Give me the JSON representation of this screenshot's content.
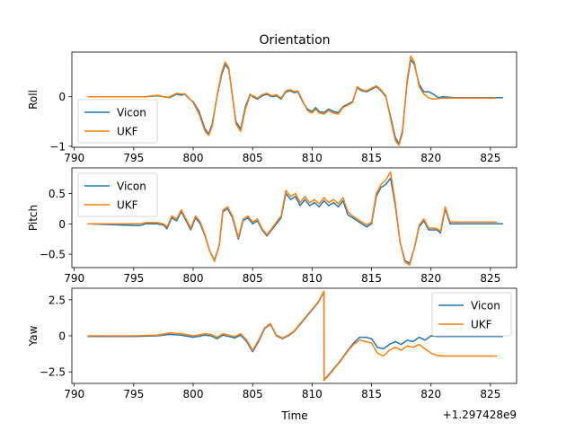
{
  "chart_data": {
    "type": "line",
    "title": "Orientation",
    "xlabel": "Time",
    "x_offset_label": "+1.297428e9",
    "colors": {
      "Vicon": "#1f77b4",
      "UKF": "#ff7f0e"
    },
    "panels": [
      {
        "ylabel": "Roll",
        "xlim": [
          789.8,
          827.2
        ],
        "ylim": [
          -1.02,
          0.9
        ],
        "xticks": [
          790,
          795,
          800,
          805,
          810,
          815,
          820,
          825
        ],
        "yticks": [
          0,
          -1
        ],
        "legend": "lower-left",
        "series": [
          {
            "name": "Vicon",
            "x": [
              791.2,
              796,
              797,
              797.5,
              798,
              798.6,
              799,
              799.3,
              799.7,
              800,
              800.5,
              801,
              801.3,
              801.6,
              802,
              802.4,
              802.7,
              803,
              803.3,
              803.6,
              804,
              804.4,
              804.8,
              805,
              805.4,
              805.8,
              806.2,
              806.6,
              807,
              807.4,
              807.8,
              808.2,
              808.5,
              808.8,
              809.2,
              809.6,
              810,
              810.3,
              810.6,
              811,
              811.4,
              811.8,
              812.2,
              812.6,
              813,
              813.4,
              813.8,
              814.2,
              814.6,
              815,
              815.4,
              815.8,
              816.2,
              816.6,
              817,
              817.3,
              817.6,
              818,
              818.3,
              818.6,
              819,
              819.4,
              819.8,
              820.2,
              820.6,
              821,
              822,
              824,
              826
            ],
            "y": [
              0.0,
              0.0,
              0.02,
              0.0,
              -0.02,
              0.05,
              0.03,
              0.05,
              -0.05,
              -0.1,
              -0.3,
              -0.65,
              -0.75,
              -0.55,
              0.0,
              0.45,
              0.65,
              0.55,
              0.0,
              -0.5,
              -0.65,
              -0.2,
              0.05,
              0.0,
              -0.05,
              0.02,
              0.05,
              0.0,
              0.02,
              -0.05,
              0.1,
              0.12,
              0.08,
              0.1,
              -0.1,
              -0.25,
              -0.3,
              -0.22,
              -0.3,
              -0.32,
              -0.25,
              -0.3,
              -0.32,
              -0.2,
              -0.15,
              -0.1,
              0.18,
              0.12,
              0.1,
              0.15,
              0.2,
              0.12,
              0.0,
              -0.4,
              -0.82,
              -0.95,
              -0.7,
              0.3,
              0.75,
              0.65,
              0.25,
              0.1,
              0.1,
              0.05,
              -0.02,
              0.0,
              -0.02,
              -0.02,
              -0.02
            ]
          },
          {
            "name": "UKF",
            "x": [
              791.2,
              796,
              797,
              797.5,
              798,
              798.6,
              799,
              799.3,
              799.7,
              800,
              800.5,
              801,
              801.3,
              801.6,
              802,
              802.4,
              802.7,
              803,
              803.3,
              803.6,
              804,
              804.4,
              804.8,
              805,
              805.4,
              805.8,
              806.2,
              806.6,
              807,
              807.4,
              807.8,
              808.2,
              808.5,
              808.8,
              809.2,
              809.6,
              810,
              810.3,
              810.6,
              811,
              811.4,
              811.8,
              812.2,
              812.6,
              813,
              813.4,
              813.8,
              814.2,
              814.6,
              815,
              815.4,
              815.8,
              816.2,
              816.6,
              817,
              817.3,
              817.6,
              818,
              818.3,
              818.6,
              819,
              819.4,
              819.8,
              820.2,
              820.6,
              821,
              822,
              824,
              825.5
            ],
            "y": [
              0.0,
              0.0,
              0.03,
              0.0,
              -0.01,
              0.07,
              0.05,
              0.06,
              -0.04,
              -0.12,
              -0.35,
              -0.7,
              -0.78,
              -0.6,
              0.02,
              0.5,
              0.7,
              0.58,
              0.02,
              -0.55,
              -0.7,
              -0.25,
              0.03,
              0.02,
              -0.03,
              0.04,
              0.07,
              0.02,
              0.04,
              -0.03,
              0.12,
              0.14,
              0.1,
              0.12,
              -0.08,
              -0.28,
              -0.33,
              -0.25,
              -0.33,
              -0.35,
              -0.28,
              -0.33,
              -0.35,
              -0.22,
              -0.17,
              -0.12,
              0.2,
              0.14,
              0.12,
              0.17,
              0.22,
              0.14,
              0.02,
              -0.45,
              -0.88,
              -0.98,
              -0.75,
              0.35,
              0.82,
              0.7,
              0.2,
              0.05,
              -0.02,
              -0.05,
              -0.04,
              -0.03,
              -0.03,
              -0.03,
              -0.03
            ]
          }
        ]
      },
      {
        "ylabel": "Pitch",
        "xlim": [
          789.8,
          827.2
        ],
        "ylim": [
          -0.72,
          0.92
        ],
        "xticks": [
          790,
          795,
          800,
          805,
          810,
          815,
          820,
          825
        ],
        "yticks": [
          0.5,
          0.0,
          -0.5
        ],
        "legend": "upper-left",
        "series": [
          {
            "name": "Vicon",
            "x": [
              791.2,
              794,
              795.5,
              796,
              797,
              797.5,
              797.8,
              798.2,
              798.6,
              799,
              799.4,
              799.8,
              800.2,
              800.6,
              801,
              801.4,
              801.8,
              802.2,
              802.5,
              802.9,
              803.3,
              803.8,
              804.2,
              804.6,
              805,
              805.4,
              805.8,
              806.2,
              806.6,
              807,
              807.4,
              807.8,
              808.2,
              808.6,
              809,
              809.4,
              809.8,
              810.2,
              810.6,
              811,
              811.4,
              811.8,
              812.2,
              812.6,
              813,
              813.4,
              813.8,
              814.2,
              814.6,
              815,
              815.4,
              815.8,
              816.2,
              816.6,
              817,
              817.4,
              817.8,
              818.2,
              818.6,
              819,
              819.4,
              819.8,
              820.2,
              820.5,
              820.8,
              821.2,
              821.6,
              822,
              824,
              826
            ],
            "y": [
              0.0,
              -0.02,
              -0.03,
              0.0,
              0.0,
              -0.02,
              -0.08,
              0.1,
              0.05,
              0.2,
              0.05,
              -0.1,
              0.1,
              0.0,
              -0.2,
              -0.45,
              -0.6,
              -0.35,
              0.2,
              0.25,
              0.1,
              -0.25,
              0.05,
              0.1,
              0.0,
              0.05,
              -0.1,
              -0.2,
              -0.1,
              0.0,
              0.1,
              0.5,
              0.4,
              0.45,
              0.3,
              0.4,
              0.3,
              0.35,
              0.28,
              0.38,
              0.3,
              0.35,
              0.28,
              0.38,
              0.15,
              0.1,
              0.05,
              0.0,
              -0.05,
              0.0,
              0.45,
              0.6,
              0.65,
              0.75,
              0.3,
              -0.3,
              -0.6,
              -0.65,
              -0.4,
              -0.05,
              0.05,
              -0.1,
              -0.1,
              -0.1,
              -0.15,
              0.25,
              0.0,
              0.0,
              0.0,
              0.0
            ]
          },
          {
            "name": "UKF",
            "x": [
              791.2,
              794,
              795.5,
              796,
              797,
              797.5,
              797.8,
              798.2,
              798.6,
              799,
              799.4,
              799.8,
              800.2,
              800.6,
              801,
              801.4,
              801.8,
              802.2,
              802.5,
              802.9,
              803.3,
              803.8,
              804.2,
              804.6,
              805,
              805.4,
              805.8,
              806.2,
              806.6,
              807,
              807.4,
              807.8,
              808.2,
              808.6,
              809,
              809.4,
              809.8,
              810.2,
              810.6,
              811,
              811.4,
              811.8,
              812.2,
              812.6,
              813,
              813.4,
              813.8,
              814.2,
              814.6,
              815,
              815.4,
              815.8,
              816.2,
              816.6,
              817,
              817.4,
              817.8,
              818.2,
              818.6,
              819,
              819.4,
              819.8,
              820.2,
              820.5,
              820.8,
              821.2,
              821.6,
              822,
              824,
              825.5
            ],
            "y": [
              0.0,
              0.0,
              0.0,
              0.02,
              0.02,
              0.0,
              -0.05,
              0.13,
              0.08,
              0.23,
              0.08,
              -0.07,
              0.13,
              0.03,
              -0.18,
              -0.45,
              -0.62,
              -0.35,
              0.23,
              0.28,
              0.13,
              -0.22,
              0.08,
              0.13,
              0.03,
              0.08,
              -0.08,
              -0.18,
              -0.08,
              0.03,
              0.13,
              0.55,
              0.45,
              0.5,
              0.35,
              0.45,
              0.35,
              0.4,
              0.33,
              0.43,
              0.35,
              0.4,
              0.33,
              0.43,
              0.2,
              0.13,
              0.08,
              0.03,
              -0.02,
              0.03,
              0.5,
              0.65,
              0.72,
              0.85,
              0.35,
              -0.3,
              -0.63,
              -0.68,
              -0.4,
              -0.02,
              0.08,
              -0.07,
              -0.07,
              -0.08,
              -0.12,
              0.28,
              0.03,
              0.03,
              0.03,
              0.03
            ]
          }
        ]
      },
      {
        "ylabel": "Yaw",
        "xlim": [
          789.8,
          827.2
        ],
        "ylim": [
          -3.3,
          3.3
        ],
        "xticks": [
          790,
          795,
          800,
          805,
          810,
          815,
          820,
          825
        ],
        "yticks": [
          2.5,
          0.0,
          -2.5
        ],
        "legend": "upper-right",
        "series": [
          {
            "name": "Vicon",
            "x": [
              791.2,
              795,
              797,
              798,
              799,
              800,
              801,
              801.5,
              802,
              802.5,
              803,
              803.5,
              804,
              804.5,
              805,
              805.5,
              806,
              806.5,
              807,
              807.5,
              808,
              808.5,
              809,
              809.5,
              810,
              810.5,
              811,
              811.01,
              811.5,
              812,
              812.5,
              813,
              813.5,
              814,
              814.5,
              815,
              815.5,
              816,
              816.5,
              817,
              817.5,
              818,
              818.5,
              819,
              819.5,
              820,
              820.5,
              821,
              822,
              824,
              826
            ],
            "y": [
              -0.05,
              -0.05,
              0.0,
              0.1,
              0.05,
              -0.1,
              0.05,
              0.0,
              -0.2,
              0.05,
              -0.05,
              -0.15,
              0.05,
              -0.4,
              -1.1,
              -0.4,
              0.5,
              0.8,
              0.0,
              -0.2,
              0.0,
              0.3,
              0.8,
              1.3,
              1.8,
              2.3,
              3.05,
              -3.05,
              -2.6,
              -2.1,
              -1.6,
              -1.0,
              -0.5,
              -0.1,
              -0.1,
              -0.2,
              -0.8,
              -0.9,
              -0.6,
              -0.4,
              -0.6,
              -0.3,
              -0.4,
              -0.1,
              -0.3,
              0.0,
              -0.05,
              -0.05,
              -0.05,
              -0.05,
              -0.05
            ]
          },
          {
            "name": "UKF",
            "x": [
              791.2,
              795,
              797,
              798,
              799,
              800,
              801,
              801.5,
              802,
              802.5,
              803,
              803.5,
              804,
              804.5,
              805,
              805.5,
              806,
              806.5,
              807,
              807.5,
              808,
              808.5,
              809,
              809.5,
              810,
              810.5,
              811,
              811.01,
              811.5,
              812,
              812.5,
              813,
              813.5,
              814,
              814.5,
              815,
              815.5,
              816,
              816.5,
              817,
              817.5,
              818,
              818.5,
              819,
              819.5,
              820,
              820.5,
              821,
              822,
              824,
              825.5
            ],
            "y": [
              0.0,
              0.0,
              0.05,
              0.2,
              0.15,
              0.0,
              0.15,
              0.1,
              -0.1,
              0.15,
              0.05,
              -0.05,
              0.15,
              -0.3,
              -1.0,
              -0.3,
              0.55,
              0.85,
              0.05,
              -0.15,
              0.05,
              0.35,
              0.85,
              1.35,
              1.85,
              2.35,
              3.1,
              -3.1,
              -2.65,
              -2.15,
              -1.65,
              -1.05,
              -0.6,
              -0.3,
              -0.4,
              -0.5,
              -1.2,
              -1.4,
              -1.0,
              -0.8,
              -1.0,
              -0.7,
              -0.8,
              -0.6,
              -0.9,
              -1.2,
              -1.35,
              -1.4,
              -1.4,
              -1.4,
              -1.4
            ]
          }
        ]
      }
    ]
  }
}
